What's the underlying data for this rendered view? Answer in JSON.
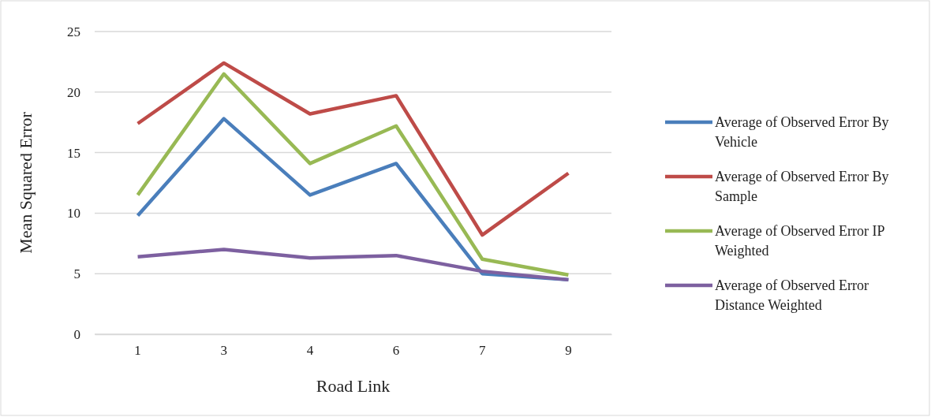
{
  "chart_data": {
    "type": "line",
    "xlabel": "Road Link",
    "ylabel": "Mean Squared Error",
    "categories": [
      "1",
      "3",
      "4",
      "6",
      "7",
      "9"
    ],
    "series": [
      {
        "name": "Average of Observed Error By Vehicle",
        "color": "#4a7ebb",
        "values": [
          9.8,
          17.8,
          11.5,
          14.1,
          5.0,
          4.5
        ]
      },
      {
        "name": "Average of Observed Error By Sample",
        "color": "#be4b48",
        "values": [
          17.4,
          22.4,
          18.2,
          19.7,
          8.2,
          13.3
        ]
      },
      {
        "name": "Average of Observed Error IP Weighted",
        "color": "#98b954",
        "values": [
          11.5,
          21.5,
          14.1,
          17.2,
          6.2,
          4.9
        ]
      },
      {
        "name": "Average of Observed Error Distance Weighted",
        "color": "#7d60a0",
        "values": [
          6.4,
          7.0,
          6.3,
          6.5,
          5.2,
          4.5
        ]
      }
    ],
    "ylim": [
      0,
      25
    ],
    "yticks": [
      0,
      5,
      10,
      15,
      20,
      25
    ],
    "grid": "y",
    "legend": "right",
    "marker": "none",
    "line_style": "solid"
  }
}
